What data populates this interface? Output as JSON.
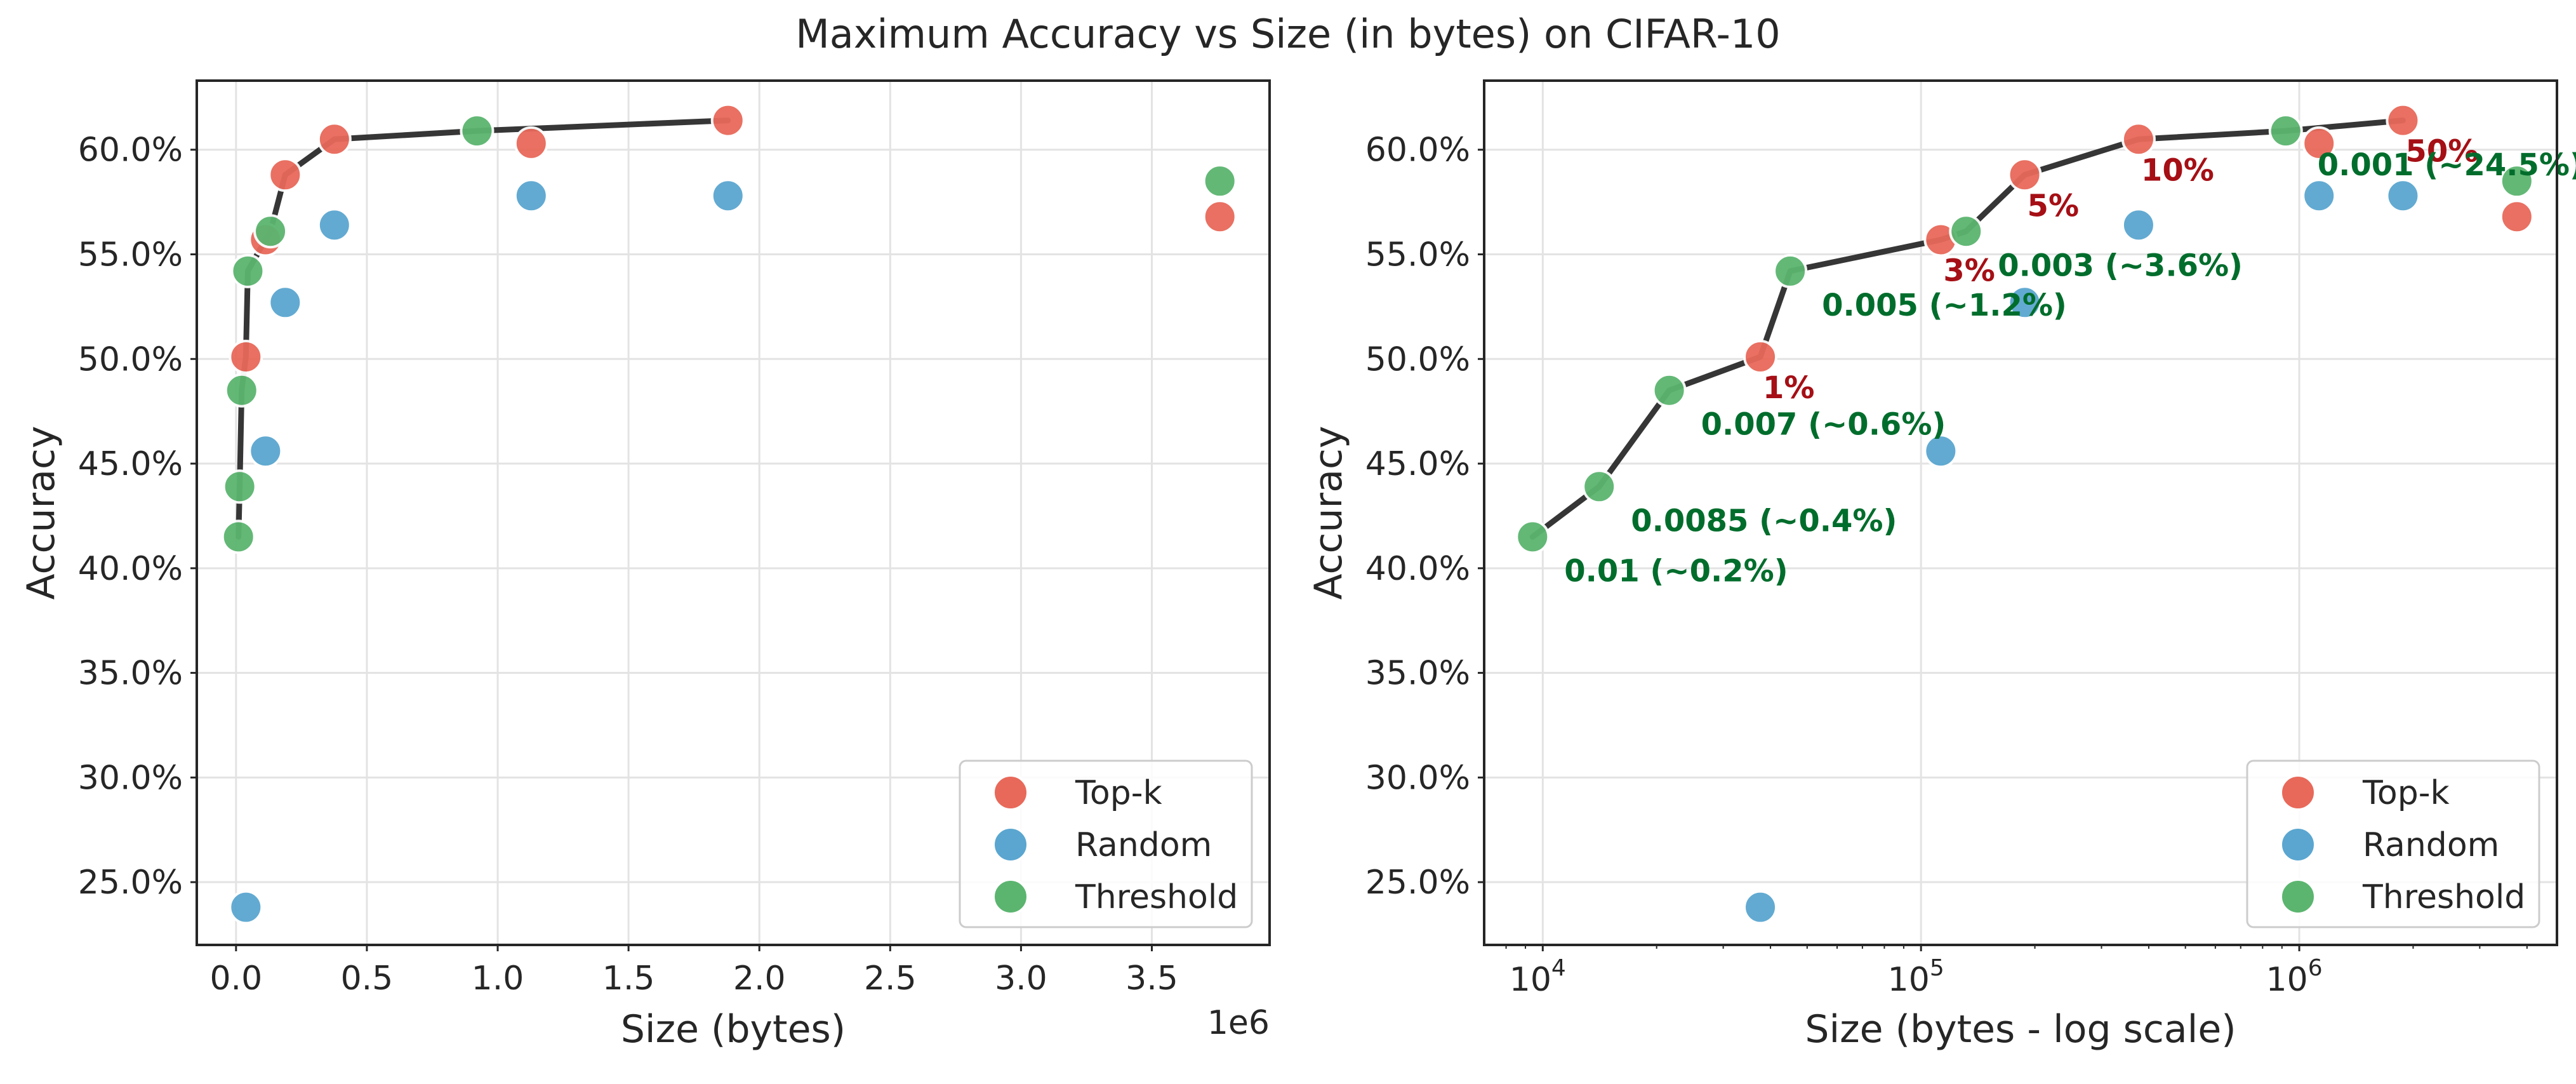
{
  "figure": {
    "title": "Maximum Accuracy vs Size (in bytes) on CIFAR-10"
  },
  "colors": {
    "topk": "#e8695a",
    "random": "#5aa6d0",
    "threshold": "#5bb56f",
    "frontier": "#2b2b2b",
    "topk_annotation": "#a50f15",
    "threshold_annotation": "#006d2c"
  },
  "chart_data": [
    {
      "type": "scatter",
      "xscale": "linear",
      "xlabel": "Size (bytes)",
      "ylabel": "Accuracy",
      "x_offset_text": "1e6",
      "xlim": [
        -150000,
        3950000
      ],
      "ylim": [
        0.22,
        0.633
      ],
      "xticks": [
        0,
        500000,
        1000000,
        1500000,
        2000000,
        2500000,
        3000000,
        3500000
      ],
      "xtick_labels": [
        "0.0",
        "0.5",
        "1.0",
        "1.5",
        "2.0",
        "2.5",
        "3.0",
        "3.5"
      ],
      "yticks": [
        0.25,
        0.3,
        0.35,
        0.4,
        0.45,
        0.5,
        0.55,
        0.6
      ],
      "ytick_labels": [
        "25.0%",
        "30.0%",
        "35.0%",
        "40.0%",
        "45.0%",
        "50.0%",
        "55.0%",
        "60.0%"
      ],
      "grid": true,
      "legend_position": "lower-right",
      "legend": [
        "Top-k",
        "Random",
        "Threshold"
      ],
      "series": [
        {
          "name": "Top-k",
          "color_key": "topk",
          "x": [
            37600,
            112800,
            188000,
            376000,
            1128000,
            1880000,
            3760000
          ],
          "y": [
            0.501,
            0.557,
            0.588,
            0.605,
            0.603,
            0.614,
            0.568
          ]
        },
        {
          "name": "Random",
          "color_key": "random",
          "x": [
            37600,
            112800,
            188000,
            376000,
            1128000,
            1880000
          ],
          "y": [
            0.238,
            0.456,
            0.527,
            0.564,
            0.578,
            0.578
          ]
        },
        {
          "name": "Threshold",
          "color_key": "threshold",
          "x": [
            9400,
            14100,
            21600,
            45100,
            131600,
            921000,
            3760000
          ],
          "y": [
            0.415,
            0.439,
            0.485,
            0.542,
            0.561,
            0.609,
            0.585
          ]
        }
      ],
      "frontier": {
        "x": [
          9400,
          14100,
          21600,
          37600,
          45100,
          112800,
          131600,
          188000,
          376000,
          921000,
          1880000
        ],
        "y": [
          0.415,
          0.439,
          0.485,
          0.501,
          0.542,
          0.557,
          0.561,
          0.588,
          0.605,
          0.609,
          0.614
        ]
      }
    },
    {
      "type": "scatter",
      "xscale": "log",
      "xlabel": "Size (bytes - log scale)",
      "ylabel": "Accuracy",
      "xlim": [
        7000,
        4800000
      ],
      "ylim": [
        0.22,
        0.633
      ],
      "xticks": [
        10000,
        100000,
        1000000
      ],
      "xtick_labels": [
        {
          "base": "10",
          "exp": "4"
        },
        {
          "base": "10",
          "exp": "5"
        },
        {
          "base": "10",
          "exp": "6"
        }
      ],
      "yticks": [
        0.25,
        0.3,
        0.35,
        0.4,
        0.45,
        0.5,
        0.55,
        0.6
      ],
      "ytick_labels": [
        "25.0%",
        "30.0%",
        "35.0%",
        "40.0%",
        "45.0%",
        "50.0%",
        "55.0%",
        "60.0%"
      ],
      "grid": true,
      "legend_position": "lower-right",
      "legend": [
        "Top-k",
        "Random",
        "Threshold"
      ],
      "series": [
        {
          "name": "Top-k",
          "color_key": "topk",
          "x": [
            37600,
            112800,
            188000,
            376000,
            1128000,
            1880000,
            3760000
          ],
          "y": [
            0.501,
            0.557,
            0.588,
            0.605,
            0.603,
            0.614,
            0.568
          ]
        },
        {
          "name": "Random",
          "color_key": "random",
          "x": [
            37600,
            112800,
            188000,
            376000,
            1128000,
            1880000
          ],
          "y": [
            0.238,
            0.456,
            0.527,
            0.564,
            0.578,
            0.578
          ]
        },
        {
          "name": "Threshold",
          "color_key": "threshold",
          "x": [
            9400,
            14100,
            21600,
            45100,
            131600,
            921000,
            3760000
          ],
          "y": [
            0.415,
            0.439,
            0.485,
            0.542,
            0.561,
            0.609,
            0.585
          ]
        }
      ],
      "frontier": {
        "x": [
          9400,
          14100,
          21600,
          37600,
          45100,
          112800,
          131600,
          188000,
          376000,
          921000,
          1880000
        ],
        "y": [
          0.415,
          0.439,
          0.485,
          0.501,
          0.542,
          0.557,
          0.561,
          0.588,
          0.605,
          0.609,
          0.614
        ]
      },
      "annotations": [
        {
          "text": "1%",
          "x": 37600,
          "y": 0.501,
          "kind": "topk"
        },
        {
          "text": "3%",
          "x": 112800,
          "y": 0.557,
          "kind": "topk"
        },
        {
          "text": "5%",
          "x": 188000,
          "y": 0.588,
          "kind": "topk"
        },
        {
          "text": "10%",
          "x": 376000,
          "y": 0.605,
          "kind": "topk"
        },
        {
          "text": "50%",
          "x": 1880000,
          "y": 0.614,
          "kind": "topk"
        },
        {
          "text": "0.01 (~0.2%)",
          "x": 9400,
          "y": 0.415,
          "kind": "threshold"
        },
        {
          "text": "0.0085 (~0.4%)",
          "x": 14100,
          "y": 0.439,
          "kind": "threshold"
        },
        {
          "text": "0.007 (~0.6%)",
          "x": 21600,
          "y": 0.485,
          "kind": "threshold"
        },
        {
          "text": "0.005 (~1.2%)",
          "x": 45100,
          "y": 0.542,
          "kind": "threshold"
        },
        {
          "text": "0.003 (~3.6%)",
          "x": 131600,
          "y": 0.561,
          "kind": "threshold"
        },
        {
          "text": "0.001 (~24.5%)",
          "x": 921000,
          "y": 0.609,
          "kind": "threshold"
        }
      ]
    }
  ]
}
